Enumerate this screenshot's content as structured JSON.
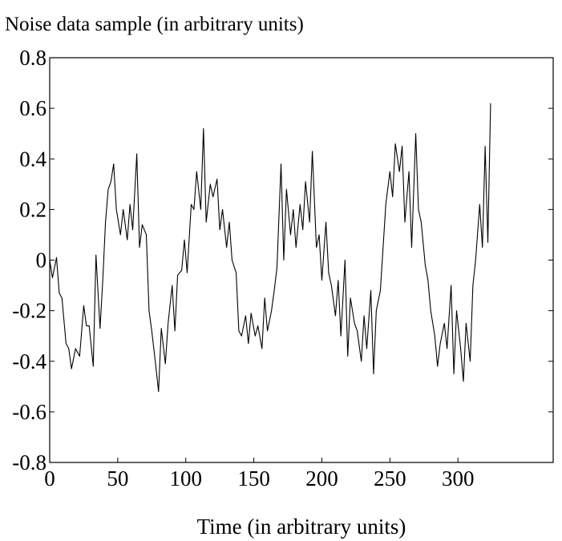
{
  "chart_data": {
    "type": "line",
    "title": "Noise data sample (in arbitrary units)",
    "x_label": "Time (in arbitrary units)",
    "xlim": [
      0,
      370
    ],
    "xticks": [
      0,
      50,
      100,
      150,
      200,
      250,
      300
    ],
    "ylim": [
      -0.8,
      0.8
    ],
    "yticks": [
      -0.8,
      -0.6,
      -0.4,
      -0.2,
      0,
      0.2,
      0.4,
      0.6,
      0.8
    ],
    "grid": false,
    "series": [
      {
        "color": "#000000",
        "x": [
          0,
          2,
          5,
          7,
          9,
          12,
          14,
          16,
          19,
          22,
          25,
          27,
          29,
          32,
          34,
          37,
          39,
          41,
          43,
          45,
          47,
          49,
          52,
          54,
          57,
          59,
          61,
          64,
          66,
          68,
          71,
          73,
          75,
          78,
          80,
          82,
          85,
          87,
          90,
          92,
          94,
          97,
          99,
          101,
          104,
          106,
          108,
          111,
          113,
          115,
          118,
          120,
          123,
          125,
          127,
          130,
          132,
          134,
          137,
          139,
          141,
          144,
          146,
          148,
          151,
          153,
          156,
          158,
          160,
          163,
          165,
          167,
          170,
          172,
          174,
          177,
          179,
          181,
          184,
          186,
          188,
          191,
          193,
          196,
          198,
          200,
          203,
          205,
          207,
          210,
          212,
          214,
          217,
          219,
          221,
          224,
          226,
          229,
          231,
          233,
          236,
          238,
          240,
          243,
          245,
          247,
          250,
          252,
          254,
          257,
          259,
          261,
          264,
          266,
          269,
          271,
          273,
          276,
          278,
          280,
          283,
          285,
          287,
          290,
          292,
          295,
          297,
          299,
          302,
          304,
          306,
          309,
          311,
          313,
          316,
          318,
          320,
          322,
          324
        ],
        "values": [
          0.0,
          -0.07,
          0.01,
          -0.13,
          -0.15,
          -0.33,
          -0.35,
          -0.43,
          -0.35,
          -0.38,
          -0.18,
          -0.26,
          -0.26,
          -0.42,
          0.02,
          -0.27,
          -0.08,
          0.15,
          0.28,
          0.31,
          0.38,
          0.2,
          0.1,
          0.2,
          0.08,
          0.22,
          0.12,
          0.42,
          0.05,
          0.14,
          0.1,
          -0.2,
          -0.28,
          -0.42,
          -0.52,
          -0.27,
          -0.41,
          -0.25,
          -0.1,
          -0.28,
          -0.06,
          -0.04,
          0.08,
          -0.05,
          0.22,
          0.2,
          0.35,
          0.2,
          0.52,
          0.15,
          0.3,
          0.25,
          0.32,
          0.12,
          0.2,
          0.05,
          0.15,
          0.0,
          -0.05,
          -0.28,
          -0.3,
          -0.22,
          -0.33,
          -0.21,
          -0.3,
          -0.26,
          -0.35,
          -0.15,
          -0.28,
          -0.2,
          -0.12,
          -0.03,
          0.38,
          0.0,
          0.28,
          0.1,
          0.2,
          0.05,
          0.22,
          0.12,
          0.31,
          0.15,
          0.43,
          0.05,
          0.1,
          -0.08,
          0.15,
          -0.05,
          -0.1,
          -0.22,
          -0.08,
          -0.3,
          0.0,
          -0.38,
          -0.15,
          -0.25,
          -0.28,
          -0.4,
          -0.22,
          -0.35,
          -0.12,
          -0.45,
          -0.2,
          -0.12,
          0.05,
          0.22,
          0.35,
          0.25,
          0.46,
          0.35,
          0.45,
          0.15,
          0.35,
          0.05,
          0.5,
          0.2,
          0.15,
          -0.02,
          -0.08,
          -0.2,
          -0.3,
          -0.42,
          -0.33,
          -0.25,
          -0.35,
          -0.1,
          -0.45,
          -0.2,
          -0.35,
          -0.48,
          -0.25,
          -0.4,
          -0.1,
          0.0,
          0.22,
          0.05,
          0.45,
          0.07,
          0.62
        ]
      }
    ]
  }
}
